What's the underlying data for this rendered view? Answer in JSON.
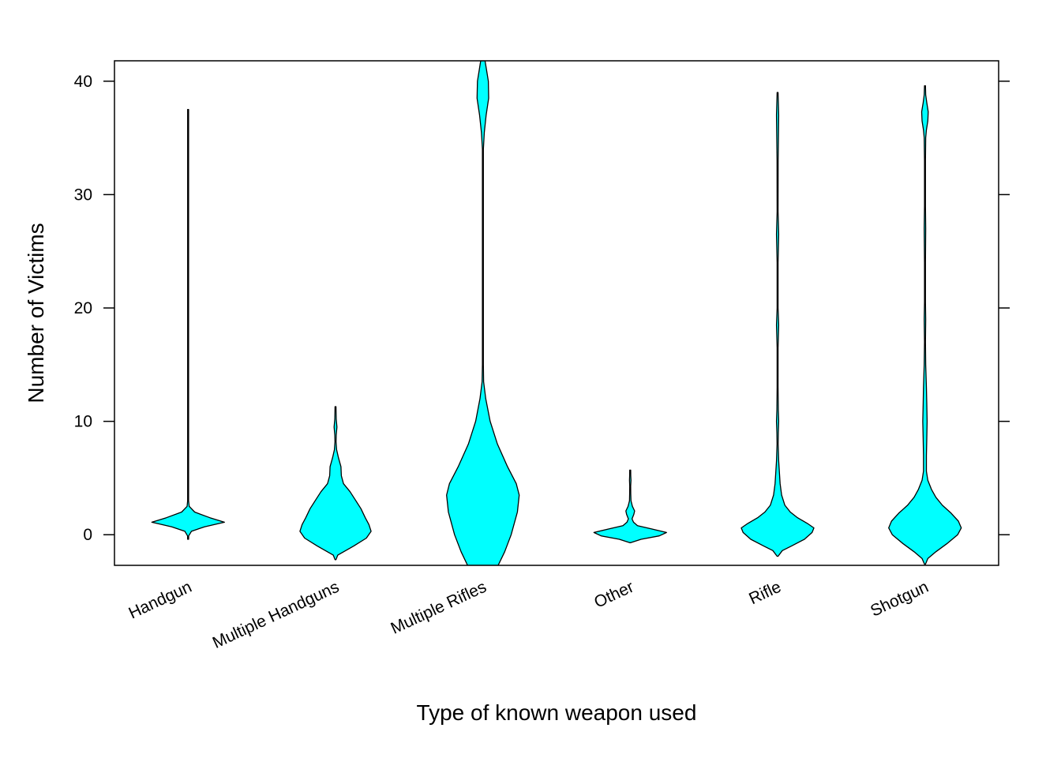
{
  "chart_data": {
    "type": "violin",
    "title": "",
    "xlabel": "Type of known weapon used",
    "ylabel": "Number of Victims",
    "categories": [
      "Handgun",
      "Multiple Handguns",
      "Multiple Rifles",
      "Other",
      "Rifle",
      "Shotgun"
    ],
    "ylim": [
      -2.7,
      41.8
    ],
    "yticks": [
      0,
      10,
      20,
      30,
      40
    ],
    "fill_color": "#00FFFF",
    "stroke_color": "#000000",
    "grid": false,
    "violins": [
      {
        "name": "Handgun",
        "profile": [
          [
            -0.4,
            0
          ],
          [
            -0.1,
            0.015
          ],
          [
            0.3,
            0.09
          ],
          [
            0.7,
            0.45
          ],
          [
            1.1,
            1.0
          ],
          [
            1.5,
            0.6
          ],
          [
            2.0,
            0.18
          ],
          [
            2.5,
            0.03
          ],
          [
            3.0,
            0.01
          ],
          [
            4.0,
            0.007
          ],
          [
            6.0,
            0.005
          ],
          [
            10,
            0.004
          ],
          [
            20,
            0.003
          ],
          [
            30,
            0.003
          ],
          [
            37.5,
            0
          ]
        ]
      },
      {
        "name": "Multiple Handguns",
        "profile": [
          [
            -2.2,
            0
          ],
          [
            -1.8,
            0.06
          ],
          [
            -1.0,
            0.5
          ],
          [
            -0.3,
            0.85
          ],
          [
            0.3,
            0.98
          ],
          [
            0.9,
            0.92
          ],
          [
            1.5,
            0.82
          ],
          [
            2.3,
            0.7
          ],
          [
            3.0,
            0.56
          ],
          [
            3.8,
            0.4
          ],
          [
            4.5,
            0.22
          ],
          [
            5.2,
            0.16
          ],
          [
            6.0,
            0.15
          ],
          [
            6.8,
            0.08
          ],
          [
            7.5,
            0.03
          ],
          [
            8.2,
            0.015
          ],
          [
            8.8,
            0.02
          ],
          [
            9.5,
            0.04
          ],
          [
            10.2,
            0.02
          ],
          [
            11.3,
            0
          ]
        ]
      },
      {
        "name": "Multiple Rifles",
        "profile": [
          [
            -2.7,
            0.42
          ],
          [
            -1.5,
            0.6
          ],
          [
            0,
            0.78
          ],
          [
            2.0,
            0.95
          ],
          [
            3.5,
            1.0
          ],
          [
            4.5,
            0.92
          ],
          [
            6.0,
            0.68
          ],
          [
            8.0,
            0.4
          ],
          [
            10.0,
            0.2
          ],
          [
            12.0,
            0.08
          ],
          [
            13.5,
            0.02
          ],
          [
            15,
            0.006
          ],
          [
            20,
            0.003
          ],
          [
            30,
            0.004
          ],
          [
            34,
            0.01
          ],
          [
            35.5,
            0.04
          ],
          [
            37,
            0.09
          ],
          [
            38.5,
            0.16
          ],
          [
            40,
            0.15
          ],
          [
            41,
            0.1
          ],
          [
            41.8,
            0.06
          ]
        ]
      },
      {
        "name": "Other",
        "profile": [
          [
            -0.7,
            0
          ],
          [
            -0.4,
            0.3
          ],
          [
            -0.1,
            0.8
          ],
          [
            0.2,
            1.0
          ],
          [
            0.5,
            0.6
          ],
          [
            0.8,
            0.2
          ],
          [
            1.1,
            0.09
          ],
          [
            1.4,
            0.05
          ],
          [
            1.8,
            0.1
          ],
          [
            2.1,
            0.12
          ],
          [
            2.5,
            0.06
          ],
          [
            3.0,
            0.02
          ],
          [
            3.6,
            0.015
          ],
          [
            4.3,
            0.01
          ],
          [
            4.8,
            0.02
          ],
          [
            5.2,
            0.015
          ],
          [
            5.7,
            0
          ]
        ]
      },
      {
        "name": "Rifle",
        "profile": [
          [
            -1.9,
            0
          ],
          [
            -1.4,
            0.13
          ],
          [
            -1.0,
            0.38
          ],
          [
            -0.4,
            0.74
          ],
          [
            0.2,
            0.95
          ],
          [
            0.6,
            1.0
          ],
          [
            1.0,
            0.82
          ],
          [
            1.5,
            0.55
          ],
          [
            2.0,
            0.35
          ],
          [
            2.6,
            0.2
          ],
          [
            3.5,
            0.11
          ],
          [
            4.5,
            0.07
          ],
          [
            5.5,
            0.05
          ],
          [
            6.5,
            0.03
          ],
          [
            8.0,
            0.015
          ],
          [
            9.0,
            0.02
          ],
          [
            10.0,
            0.03
          ],
          [
            11.0,
            0.02
          ],
          [
            13.0,
            0.01
          ],
          [
            16.5,
            0.01
          ],
          [
            18.5,
            0.03
          ],
          [
            20.0,
            0.01
          ],
          [
            24.0,
            0.01
          ],
          [
            26.5,
            0.03
          ],
          [
            28.5,
            0.01
          ],
          [
            33.0,
            0.015
          ],
          [
            37.0,
            0.03
          ],
          [
            39.0,
            0
          ]
        ]
      },
      {
        "name": "Shotgun",
        "profile": [
          [
            -2.6,
            0
          ],
          [
            -2.1,
            0.08
          ],
          [
            -1.5,
            0.3
          ],
          [
            -0.8,
            0.6
          ],
          [
            0,
            0.9
          ],
          [
            0.6,
            1.0
          ],
          [
            1.2,
            0.92
          ],
          [
            1.9,
            0.72
          ],
          [
            2.6,
            0.48
          ],
          [
            3.3,
            0.3
          ],
          [
            4.0,
            0.18
          ],
          [
            4.8,
            0.08
          ],
          [
            5.6,
            0.04
          ],
          [
            7,
            0.04
          ],
          [
            8.5,
            0.05
          ],
          [
            10,
            0.06
          ],
          [
            11.5,
            0.05
          ],
          [
            13,
            0.04
          ],
          [
            15,
            0.02
          ],
          [
            17,
            0.01
          ],
          [
            19,
            0.02
          ],
          [
            20.5,
            0.01
          ],
          [
            24,
            0.01
          ],
          [
            27,
            0.02
          ],
          [
            29,
            0.01
          ],
          [
            33,
            0.01
          ],
          [
            35,
            0.02
          ],
          [
            35.7,
            0.04
          ],
          [
            36.5,
            0.08
          ],
          [
            37.3,
            0.09
          ],
          [
            38.1,
            0.05
          ],
          [
            38.8,
            0.02
          ],
          [
            39.6,
            0
          ]
        ]
      }
    ]
  }
}
